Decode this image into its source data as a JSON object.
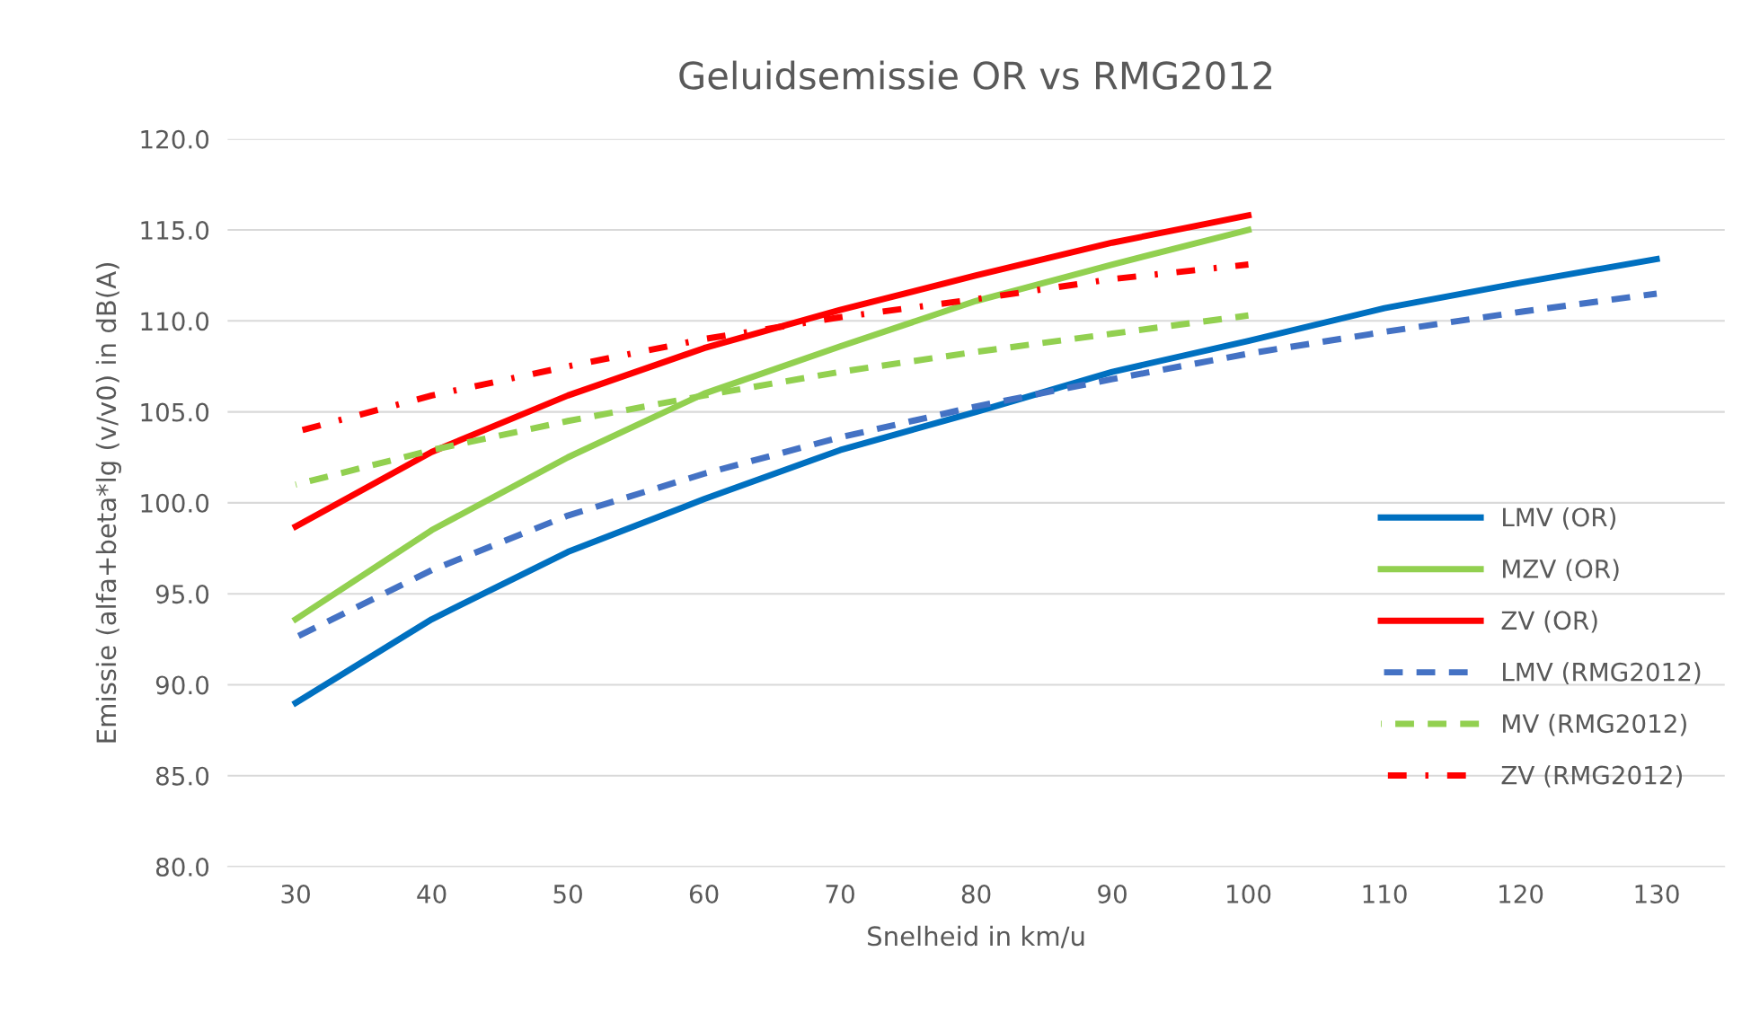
{
  "chart_data": {
    "type": "line",
    "title": "Geluidsemissie OR vs RMG2012",
    "xlabel": "Snelheid in km/u",
    "ylabel": "Emissie (alfa+beta*lg (v/v0) in dB(A)",
    "categories": [
      "30",
      "40",
      "50",
      "60",
      "70",
      "80",
      "90",
      "100",
      "110",
      "120",
      "130"
    ],
    "ylim": [
      80,
      120
    ],
    "yticks": [
      {
        "value": 80,
        "label": "80.0"
      },
      {
        "value": 85,
        "label": "85.0"
      },
      {
        "value": 90,
        "label": "90.0"
      },
      {
        "value": 95,
        "label": "95.0"
      },
      {
        "value": 100,
        "label": "100.0"
      },
      {
        "value": 105,
        "label": "105.0"
      },
      {
        "value": 110,
        "label": "110.0"
      },
      {
        "value": 115,
        "label": "115.0"
      },
      {
        "value": 120,
        "label": "120.0"
      }
    ],
    "grid": "y",
    "legend": "right",
    "marker": "none",
    "series": [
      {
        "name": "LMV (OR)",
        "color": "#0070c0",
        "line_style": "solid",
        "values": [
          89.0,
          93.6,
          97.3,
          100.2,
          102.9,
          105.0,
          107.2,
          108.9,
          110.7,
          112.1,
          113.4
        ]
      },
      {
        "name": "MZV (OR)",
        "color": "#92d050",
        "line_style": "solid",
        "values": [
          93.6,
          98.5,
          102.5,
          106.0,
          108.6,
          111.1,
          113.1,
          115.0,
          null,
          null,
          null
        ]
      },
      {
        "name": "ZV (OR)",
        "color": "#ff0000",
        "line_style": "solid",
        "values": [
          98.7,
          102.8,
          105.9,
          108.5,
          110.6,
          112.5,
          114.3,
          115.8,
          null,
          null,
          null
        ]
      },
      {
        "name": "LMV (RMG2012)",
        "color": "#4472c4",
        "line_style": "dashed",
        "values": [
          92.6,
          96.3,
          99.3,
          101.6,
          103.6,
          105.3,
          106.8,
          108.2,
          109.4,
          110.5,
          111.5
        ]
      },
      {
        "name": "MV (RMG2012)",
        "color": "#92d050",
        "line_style": "dashed",
        "values": [
          101.0,
          102.9,
          104.5,
          105.9,
          107.2,
          108.3,
          109.3,
          110.3,
          null,
          null,
          null
        ]
      },
      {
        "name": "ZV (RMG2012)",
        "color": "#ff0000",
        "line_style": "dashdot",
        "values": [
          103.9,
          105.9,
          107.5,
          109.0,
          110.2,
          111.2,
          112.3,
          113.1,
          null,
          null,
          null
        ]
      }
    ]
  }
}
